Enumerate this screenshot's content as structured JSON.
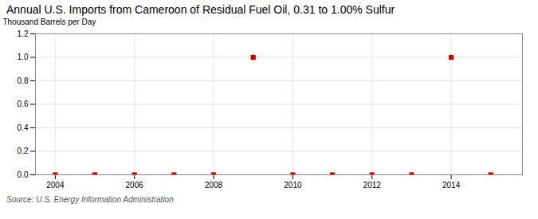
{
  "chart_data": {
    "type": "scatter",
    "title": "Annual U.S. Imports from Cameroon of Residual Fuel Oil, 0.31 to 1.00% Sulfur",
    "ylabel": "Thousand Barrels per Day",
    "source": "Source: U.S. Energy Information Administration",
    "x": [
      2004,
      2005,
      2006,
      2007,
      2008,
      2009,
      2010,
      2011,
      2012,
      2013,
      2014,
      2015
    ],
    "values": [
      0,
      0,
      0,
      0,
      0,
      1.0,
      0,
      0,
      0,
      0,
      1.0,
      0
    ],
    "color": "#cc0000",
    "marker": "square",
    "xlim": [
      2003.5,
      2015.8
    ],
    "ylim": [
      0.0,
      1.2
    ],
    "xticks": [
      2004,
      2006,
      2008,
      2010,
      2012,
      2014
    ],
    "yticks": [
      {
        "value": 0,
        "label": "0.0"
      },
      0.2,
      0.4,
      0.6,
      0.8,
      {
        "value": 1,
        "label": "1.0"
      },
      1.2
    ],
    "grid": true
  }
}
